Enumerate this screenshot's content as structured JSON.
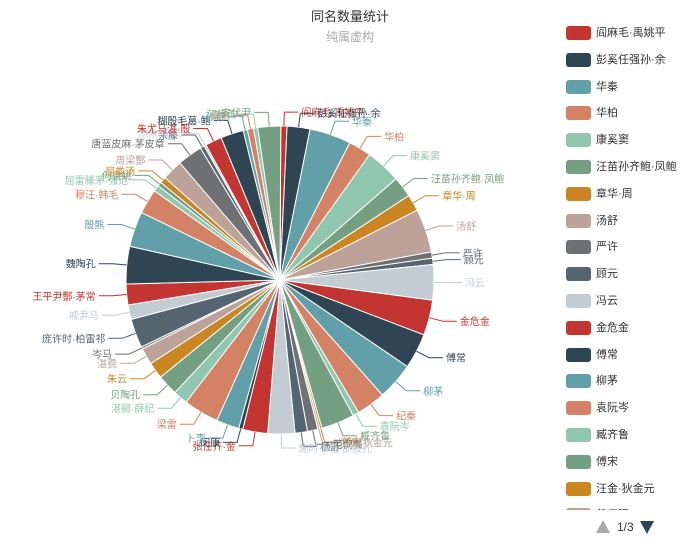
{
  "chart_data": {
    "type": "pie",
    "title": "同名数量统计",
    "subtitle": "纯属虚构",
    "palette": [
      "#c23531",
      "#2f4554",
      "#61a0a8",
      "#d48265",
      "#91c7ae",
      "#749f83",
      "#ca8622",
      "#bda29a",
      "#6e7074",
      "#546570",
      "#c4ccd3"
    ],
    "slices": [
      {
        "name": "阎麻毛·禹姚平",
        "value": 3
      },
      {
        "name": "彭奚任强孙·余",
        "value": 11
      },
      {
        "name": "华秦",
        "value": 20
      },
      {
        "name": "华柏",
        "value": 11
      },
      {
        "name": "康奚窦",
        "value": 17
      },
      {
        "name": "汪苗孙齐鲍·凤鲍",
        "value": 10
      },
      {
        "name": "章华·周",
        "value": 8
      },
      {
        "name": "汤舒",
        "value": 21
      },
      {
        "name": "严许",
        "value": 3
      },
      {
        "name": "顾元",
        "value": 3
      },
      {
        "name": "冯云",
        "value": 17
      },
      {
        "name": "金危金",
        "value": 17
      },
      {
        "name": "傅常",
        "value": 17
      },
      {
        "name": "柳茅",
        "value": 18
      },
      {
        "name": "纪秦",
        "value": 14
      },
      {
        "name": "袁阮岑",
        "value": 3
      },
      {
        "name": "臧齐鲁",
        "value": 16
      },
      {
        "name": "傅宋",
        "value": 1
      },
      {
        "name": "汪金·狄金元",
        "value": 1
      },
      {
        "name": "范倪强",
        "value": 5
      },
      {
        "name": "杨舒",
        "value": 6
      },
      {
        "name": "施时韦毛·邵殷孔",
        "value": 13
      },
      {
        "name": "张任齐·金",
        "value": 12
      },
      {
        "name": "闵康",
        "value": 2
      },
      {
        "name": "卜李",
        "value": 11
      },
      {
        "name": "梁雷",
        "value": 17
      },
      {
        "name": "湛郦·薛纪",
        "value": 7
      },
      {
        "name": "贝陶孔",
        "value": 10
      },
      {
        "name": "朱云",
        "value": 8
      },
      {
        "name": "湛费",
        "value": 8
      },
      {
        "name": "岑马",
        "value": 1
      },
      {
        "name": "庞许时·柏雷祁",
        "value": 14
      },
      {
        "name": "戚尹马",
        "value": 7
      },
      {
        "name": "王平尹酆·茅常",
        "value": 10
      },
      {
        "name": "魏陶孔",
        "value": 18
      },
      {
        "name": "殷熊",
        "value": 17
      },
      {
        "name": "穆汪·韩毛",
        "value": 12
      },
      {
        "name": "屈雷滕茅·强范",
        "value": 3
      },
      {
        "name": "何袁姚",
        "value": 2
      },
      {
        "name": "屈娄汤",
        "value": 3
      },
      {
        "name": "周梁酆",
        "value": 10
      },
      {
        "name": "唐蓝皮麻·茅皮章",
        "value": 12
      },
      {
        "name": "余滕",
        "value": 2
      },
      {
        "name": "汤朱邬·米",
        "value": 1
      },
      {
        "name": "朱尤马湛·殷",
        "value": 8
      },
      {
        "name": "糊殷毛葛·鲍",
        "value": 11
      },
      {
        "name": "孙费",
        "value": 2
      },
      {
        "name": "秦俞",
        "value": 3
      },
      {
        "name": "范邬王",
        "value": 2
      },
      {
        "name": "安伏尹",
        "value": 11
      }
    ]
  },
  "legend": {
    "items": [
      "阎麻毛·禹姚平",
      "彭奚任强孙·余",
      "华秦",
      "华柏",
      "康奚窦",
      "汪苗孙齐鲍·凤鲍",
      "章华·周",
      "汤舒",
      "严许",
      "顾元",
      "冯云",
      "金危金",
      "傅常",
      "柳茅",
      "袁阮岑",
      "臧齐鲁",
      "傅宋",
      "汪金·狄金元",
      "范倪强"
    ]
  },
  "pager": {
    "text": "1/3",
    "up_icon": "triangle-up-icon",
    "down_icon": "triangle-down-icon"
  }
}
